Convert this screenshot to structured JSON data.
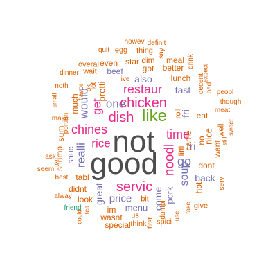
{
  "colors": {
    "gray": "#4d4d4d",
    "pink": "#e7298a",
    "green": "#66a61e",
    "purple": "#7570b3",
    "orange": "#d95f02",
    "teal": "#1b9e77"
  },
  "words": {
    "not": "not",
    "good": "good",
    "like": "like",
    "dish": "dish",
    "restaur": "restaur",
    "chicken": "chicken",
    "one": "one",
    "get": "get",
    "would": "would",
    "chines": "chines",
    "rice": "rice",
    "realli": "realli",
    "sauc": "sauc",
    "servic": "servic",
    "noodl": "noodl",
    "time": "time",
    "go": "go",
    "tri": "tri",
    "soup": "soup",
    "price": "price",
    "menu": "menu",
    "great": "great",
    "come": "come",
    "pork": "pork",
    "back": "back",
    "also": "also",
    "beef": "beef",
    "pretti": "pretti",
    "tast": "tast",
    "fri": "fri",
    "littl": "littl",
    "got": "got",
    "better": "better",
    "lunch": "lunch",
    "roll": "roll",
    "eat": "eat",
    "came": "came",
    "nice": "nice",
    "want": "want",
    "dont": "dont",
    "hot": "hot",
    "well": "well",
    "much": "much",
    "shrimp": "shrimp",
    "sum": "sum",
    "tabl": "tabl",
    "didnt": "didnt",
    "look": "look",
    "im": "im",
    "wasnt": "wasnt",
    "special": "special",
    "us": "us",
    "think": "think",
    "first": "first",
    "bit": "bit",
    "spici": "spici",
    "dumpl": "dumpl",
    "use": "use",
    "take": "take",
    "give": "give",
    "serv": "serv",
    "even": "even",
    "star": "star",
    "dim": "dim",
    "meal": "meal",
    "thing": "thing",
    "egg": "egg",
    "quit": "quit",
    "howev": "howev",
    "definit": "definit",
    "say": "say",
    "drink": "drink",
    "overal": "overal",
    "wait": "wait",
    "dinner": "dinner",
    "ive": "ive",
    "lot": "lot",
    "ok": "ok",
    "noth": "noth",
    "flavor": "flavor",
    "small": "small",
    "make": "make",
    "portion": "portion",
    "ask": "ask",
    "seem": "seem",
    "best": "best",
    "alway": "alway",
    "could": "could",
    "tea": "tea",
    "friend": "friend",
    "decent": "decent",
    "bad": "bad",
    "expect": "expect",
    "peopl": "peopl",
    "though": "though",
    "meat": "meat",
    "sweet": "sweet",
    "still": "still",
    "three": "3"
  }
}
